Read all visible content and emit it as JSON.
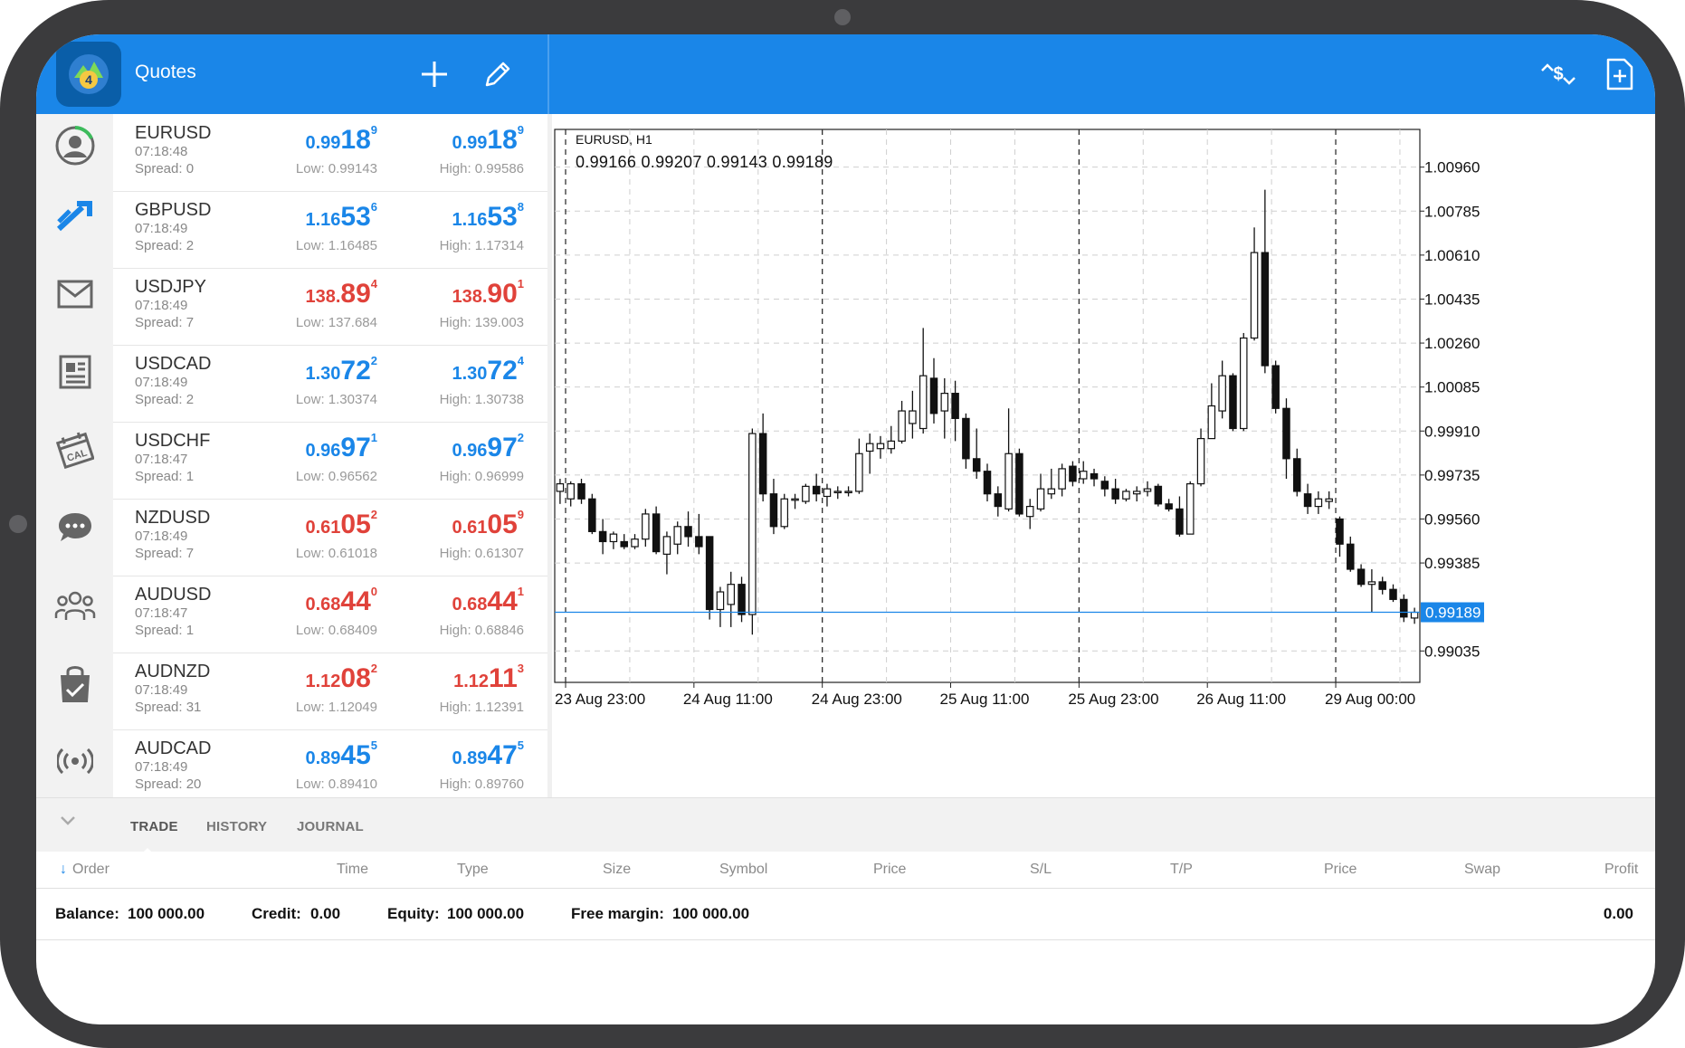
{
  "header": {
    "title": "Quotes",
    "icons": [
      "add-icon",
      "edit-icon",
      "trade-exchange-icon",
      "new-document-icon"
    ]
  },
  "nav": [
    "account-icon",
    "quotes-icon",
    "mail-icon",
    "news-icon",
    "calendar-icon",
    "chat-icon",
    "community-icon",
    "market-icon",
    "signals-icon"
  ],
  "quotes": [
    {
      "symbol": "EURUSD",
      "time": "07:18:48",
      "spread": "Spread: 0",
      "color": "blue",
      "bid": {
        "a": "0.99",
        "b": "18",
        "c": "9"
      },
      "ask": {
        "a": "0.99",
        "b": "18",
        "c": "9"
      },
      "low": "Low: 0.99143",
      "high": "High: 0.99586"
    },
    {
      "symbol": "GBPUSD",
      "time": "07:18:49",
      "spread": "Spread: 2",
      "color": "blue",
      "bid": {
        "a": "1.16",
        "b": "53",
        "c": "6"
      },
      "ask": {
        "a": "1.16",
        "b": "53",
        "c": "8"
      },
      "low": "Low: 1.16485",
      "high": "High: 1.17314"
    },
    {
      "symbol": "USDJPY",
      "time": "07:18:49",
      "spread": "Spread: 7",
      "color": "red",
      "bid": {
        "a": "138.",
        "b": "89",
        "c": "4"
      },
      "ask": {
        "a": "138.",
        "b": "90",
        "c": "1"
      },
      "low": "Low: 137.684",
      "high": "High: 139.003"
    },
    {
      "symbol": "USDCAD",
      "time": "07:18:49",
      "spread": "Spread: 2",
      "color": "blue",
      "bid": {
        "a": "1.30",
        "b": "72",
        "c": "2"
      },
      "ask": {
        "a": "1.30",
        "b": "72",
        "c": "4"
      },
      "low": "Low: 1.30374",
      "high": "High: 1.30738"
    },
    {
      "symbol": "USDCHF",
      "time": "07:18:47",
      "spread": "Spread: 1",
      "color": "blue",
      "bid": {
        "a": "0.96",
        "b": "97",
        "c": "1"
      },
      "ask": {
        "a": "0.96",
        "b": "97",
        "c": "2"
      },
      "low": "Low: 0.96562",
      "high": "High: 0.96999"
    },
    {
      "symbol": "NZDUSD",
      "time": "07:18:49",
      "spread": "Spread: 7",
      "color": "red",
      "bid": {
        "a": "0.61",
        "b": "05",
        "c": "2"
      },
      "ask": {
        "a": "0.61",
        "b": "05",
        "c": "9"
      },
      "low": "Low: 0.61018",
      "high": "High: 0.61307"
    },
    {
      "symbol": "AUDUSD",
      "time": "07:18:47",
      "spread": "Spread: 1",
      "color": "red",
      "bid": {
        "a": "0.68",
        "b": "44",
        "c": "0"
      },
      "ask": {
        "a": "0.68",
        "b": "44",
        "c": "1"
      },
      "low": "Low: 0.68409",
      "high": "High: 0.68846"
    },
    {
      "symbol": "AUDNZD",
      "time": "07:18:49",
      "spread": "Spread: 31",
      "color": "red",
      "bid": {
        "a": "1.12",
        "b": "08",
        "c": "2"
      },
      "ask": {
        "a": "1.12",
        "b": "11",
        "c": "3"
      },
      "low": "Low: 1.12049",
      "high": "High: 1.12391"
    },
    {
      "symbol": "AUDCAD",
      "time": "07:18:49",
      "spread": "Spread: 20",
      "color": "blue",
      "bid": {
        "a": "0.89",
        "b": "45",
        "c": "5"
      },
      "ask": {
        "a": "0.89",
        "b": "47",
        "c": "5"
      },
      "low": "Low: 0.89410",
      "high": "High: 0.89760"
    }
  ],
  "chart": {
    "title": "EURUSD, H1",
    "ohlc": "0.99166 0.99207 0.99143 0.99189",
    "current_price_label": "0.99189",
    "current_price": 0.99189
  },
  "chart_data": {
    "type": "candlestick",
    "symbol": "EURUSD",
    "timeframe": "H1",
    "ylim": [
      0.9891,
      1.0111
    ],
    "y_ticks": [
      1.0096,
      1.00785,
      1.0061,
      1.00435,
      1.0026,
      1.00085,
      0.9991,
      0.99735,
      0.9956,
      0.99385,
      0.99035
    ],
    "y_tick_labels": [
      "1.00960",
      "1.00785",
      "1.00610",
      "1.00435",
      "1.00260",
      "1.00085",
      "0.99910",
      "0.99735",
      "0.99560",
      "0.99385",
      "0.99035"
    ],
    "x_tick_labels": [
      "23 Aug 23:00",
      "24 Aug 11:00",
      "24 Aug 23:00",
      "25 Aug 11:00",
      "25 Aug 23:00",
      "26 Aug 11:00",
      "29 Aug 00:00"
    ],
    "session_separators": [
      "23 Aug 23:00",
      "24 Aug 23:00",
      "25 Aug 23:00",
      "29 Aug 00:00"
    ],
    "candles": [
      {
        "o": 0.9967,
        "h": 0.9972,
        "l": 0.9962,
        "c": 0.997
      },
      {
        "o": 0.9964,
        "h": 0.9971,
        "l": 0.9961,
        "c": 0.997
      },
      {
        "o": 0.997,
        "h": 0.9972,
        "l": 0.9962,
        "c": 0.9964
      },
      {
        "o": 0.9964,
        "h": 0.9966,
        "l": 0.995,
        "c": 0.9951
      },
      {
        "o": 0.9951,
        "h": 0.9956,
        "l": 0.9942,
        "c": 0.9947
      },
      {
        "o": 0.9947,
        "h": 0.9951,
        "l": 0.9944,
        "c": 0.995
      },
      {
        "o": 0.9947,
        "h": 0.995,
        "l": 0.9944,
        "c": 0.9945
      },
      {
        "o": 0.9945,
        "h": 0.995,
        "l": 0.9944,
        "c": 0.9948
      },
      {
        "o": 0.9948,
        "h": 0.996,
        "l": 0.9945,
        "c": 0.9958
      },
      {
        "o": 0.9958,
        "h": 0.9961,
        "l": 0.9942,
        "c": 0.9943
      },
      {
        "o": 0.9942,
        "h": 0.9951,
        "l": 0.9934,
        "c": 0.9949
      },
      {
        "o": 0.9946,
        "h": 0.9955,
        "l": 0.9942,
        "c": 0.9953
      },
      {
        "o": 0.9953,
        "h": 0.9959,
        "l": 0.9945,
        "c": 0.9949
      },
      {
        "o": 0.9949,
        "h": 0.9958,
        "l": 0.9942,
        "c": 0.9945
      },
      {
        "o": 0.9949,
        "h": 0.9949,
        "l": 0.9916,
        "c": 0.992
      },
      {
        "o": 0.992,
        "h": 0.9929,
        "l": 0.9913,
        "c": 0.9927
      },
      {
        "o": 0.9922,
        "h": 0.9935,
        "l": 0.9913,
        "c": 0.993
      },
      {
        "o": 0.993,
        "h": 0.9933,
        "l": 0.9915,
        "c": 0.9918
      },
      {
        "o": 0.9918,
        "h": 0.9992,
        "l": 0.991,
        "c": 0.999
      },
      {
        "o": 0.999,
        "h": 0.9998,
        "l": 0.9963,
        "c": 0.9966
      },
      {
        "o": 0.9966,
        "h": 0.9972,
        "l": 0.995,
        "c": 0.9953
      },
      {
        "o": 0.9953,
        "h": 0.9966,
        "l": 0.9952,
        "c": 0.9964
      },
      {
        "o": 0.9964,
        "h": 0.9966,
        "l": 0.996,
        "c": 0.9964
      },
      {
        "o": 0.9963,
        "h": 0.997,
        "l": 0.9962,
        "c": 0.9969
      },
      {
        "o": 0.9969,
        "h": 0.9974,
        "l": 0.9963,
        "c": 0.9966
      },
      {
        "o": 0.9965,
        "h": 0.997,
        "l": 0.9961,
        "c": 0.9968
      },
      {
        "o": 0.9967,
        "h": 0.9969,
        "l": 0.9964,
        "c": 0.9967
      },
      {
        "o": 0.9967,
        "h": 0.9969,
        "l": 0.9965,
        "c": 0.9967
      },
      {
        "o": 0.9967,
        "h": 0.9988,
        "l": 0.9966,
        "c": 0.9982
      },
      {
        "o": 0.9983,
        "h": 0.999,
        "l": 0.9974,
        "c": 0.9986
      },
      {
        "o": 0.9984,
        "h": 0.9989,
        "l": 0.998,
        "c": 0.9986
      },
      {
        "o": 0.9984,
        "h": 0.9993,
        "l": 0.9982,
        "c": 0.9987
      },
      {
        "o": 0.9987,
        "h": 1.0003,
        "l": 0.9986,
        "c": 0.9999
      },
      {
        "o": 0.9994,
        "h": 1.0007,
        "l": 0.9988,
        "c": 0.9999
      },
      {
        "o": 0.9992,
        "h": 1.0032,
        "l": 0.999,
        "c": 1.0013
      },
      {
        "o": 1.0012,
        "h": 1.002,
        "l": 0.9994,
        "c": 0.9998
      },
      {
        "o": 0.9999,
        "h": 1.0012,
        "l": 0.9988,
        "c": 1.0006
      },
      {
        "o": 1.0006,
        "h": 1.0011,
        "l": 0.9987,
        "c": 0.9996
      },
      {
        "o": 0.9996,
        "h": 0.9998,
        "l": 0.9976,
        "c": 0.998
      },
      {
        "o": 0.998,
        "h": 0.9992,
        "l": 0.9972,
        "c": 0.9975
      },
      {
        "o": 0.9975,
        "h": 0.9978,
        "l": 0.9963,
        "c": 0.9966
      },
      {
        "o": 0.9966,
        "h": 0.9969,
        "l": 0.9957,
        "c": 0.9961
      },
      {
        "o": 0.996,
        "h": 1.0,
        "l": 0.9959,
        "c": 0.9982
      },
      {
        "o": 0.9982,
        "h": 0.9984,
        "l": 0.9957,
        "c": 0.9958
      },
      {
        "o": 0.9957,
        "h": 0.9964,
        "l": 0.9952,
        "c": 0.9961
      },
      {
        "o": 0.996,
        "h": 0.9974,
        "l": 0.9959,
        "c": 0.9968
      },
      {
        "o": 0.9966,
        "h": 0.9976,
        "l": 0.9964,
        "c": 0.9968
      },
      {
        "o": 0.9968,
        "h": 0.9978,
        "l": 0.9965,
        "c": 0.9976
      },
      {
        "o": 0.9977,
        "h": 0.9979,
        "l": 0.9969,
        "c": 0.9971
      },
      {
        "o": 0.9972,
        "h": 0.9979,
        "l": 0.997,
        "c": 0.9975
      },
      {
        "o": 0.9974,
        "h": 0.9976,
        "l": 0.9969,
        "c": 0.9972
      },
      {
        "o": 0.9971,
        "h": 0.9973,
        "l": 0.9965,
        "c": 0.9968
      },
      {
        "o": 0.9968,
        "h": 0.9972,
        "l": 0.9962,
        "c": 0.9964
      },
      {
        "o": 0.9964,
        "h": 0.9968,
        "l": 0.9963,
        "c": 0.9967
      },
      {
        "o": 0.9966,
        "h": 0.9969,
        "l": 0.9963,
        "c": 0.9967
      },
      {
        "o": 0.9967,
        "h": 0.9971,
        "l": 0.9965,
        "c": 0.9968
      },
      {
        "o": 0.9969,
        "h": 0.997,
        "l": 0.9961,
        "c": 0.9962
      },
      {
        "o": 0.9962,
        "h": 0.9964,
        "l": 0.9959,
        "c": 0.996
      },
      {
        "o": 0.996,
        "h": 0.9965,
        "l": 0.9949,
        "c": 0.995
      },
      {
        "o": 0.995,
        "h": 0.9971,
        "l": 0.995,
        "c": 0.997
      },
      {
        "o": 0.997,
        "h": 0.9992,
        "l": 0.9969,
        "c": 0.9988
      },
      {
        "o": 0.9988,
        "h": 1.001,
        "l": 0.9988,
        "c": 1.0001
      },
      {
        "o": 0.9999,
        "h": 1.0019,
        "l": 0.9996,
        "c": 1.0013
      },
      {
        "o": 1.0013,
        "h": 1.0014,
        "l": 0.9991,
        "c": 0.9992
      },
      {
        "o": 0.9992,
        "h": 1.003,
        "l": 0.9991,
        "c": 1.0028
      },
      {
        "o": 1.0028,
        "h": 1.0072,
        "l": 1.0027,
        "c": 1.0062
      },
      {
        "o": 1.0062,
        "h": 1.0087,
        "l": 1.0014,
        "c": 1.0017
      },
      {
        "o": 1.0017,
        "h": 1.0019,
        "l": 0.9998,
        "c": 1.0
      },
      {
        "o": 1.0,
        "h": 1.0004,
        "l": 0.9972,
        "c": 0.998
      },
      {
        "o": 0.998,
        "h": 0.9984,
        "l": 0.9965,
        "c": 0.9967
      },
      {
        "o": 0.9966,
        "h": 0.997,
        "l": 0.9958,
        "c": 0.9961
      },
      {
        "o": 0.9961,
        "h": 0.9967,
        "l": 0.9958,
        "c": 0.9964
      },
      {
        "o": 0.9963,
        "h": 0.9967,
        "l": 0.996,
        "c": 0.9964
      },
      {
        "o": 0.9956,
        "h": 0.9957,
        "l": 0.9941,
        "c": 0.9946
      },
      {
        "o": 0.9946,
        "h": 0.9949,
        "l": 0.9935,
        "c": 0.9936
      },
      {
        "o": 0.9936,
        "h": 0.9938,
        "l": 0.9929,
        "c": 0.993
      },
      {
        "o": 0.993,
        "h": 0.9936,
        "l": 0.9919,
        "c": 0.9931
      },
      {
        "o": 0.9931,
        "h": 0.9933,
        "l": 0.9926,
        "c": 0.9928
      },
      {
        "o": 0.9928,
        "h": 0.993,
        "l": 0.9923,
        "c": 0.9924
      },
      {
        "o": 0.9924,
        "h": 0.9926,
        "l": 0.9915,
        "c": 0.9917
      },
      {
        "o": 0.99166,
        "h": 0.99207,
        "l": 0.99143,
        "c": 0.99189
      }
    ]
  },
  "bottom": {
    "tabs": [
      "TRADE",
      "HISTORY",
      "JOURNAL"
    ],
    "columns": [
      "Order",
      "Time",
      "Type",
      "Size",
      "Symbol",
      "Price",
      "S/L",
      "T/P",
      "Price",
      "Swap",
      "Profit"
    ],
    "balance_label": "Balance:",
    "balance_value": "100 000.00",
    "credit_label": "Credit:",
    "credit_value": "0.00",
    "equity_label": "Equity:",
    "equity_value": "100 000.00",
    "free_margin_label": "Free margin:",
    "free_margin_value": "100 000.00",
    "profit_value": "0.00"
  }
}
